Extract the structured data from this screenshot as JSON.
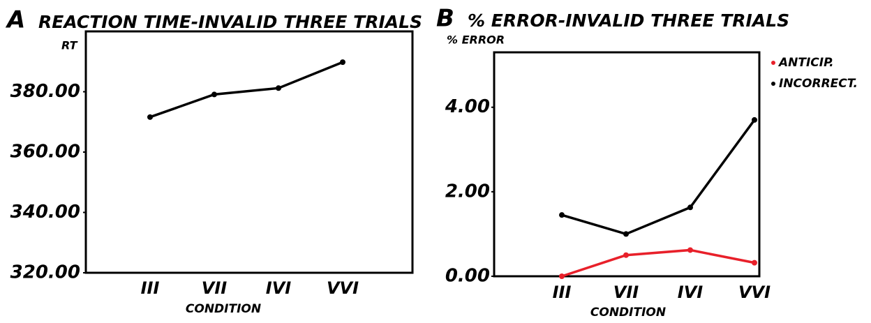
{
  "chart_data": [
    {
      "type": "line",
      "panel": "A",
      "title": "REACTION TIME-INVALID THREE TRIALS",
      "y_label": "RT",
      "x_label": "CONDITION",
      "categories": [
        "III",
        "VII",
        "IVI",
        "VVI"
      ],
      "values": [
        371.6,
        379.1,
        381.2,
        389.8
      ],
      "color": "#000000",
      "ylim": [
        320,
        400
      ],
      "yticks": [
        {
          "value": 320,
          "label": "320.00"
        },
        {
          "value": 340,
          "label": "340.00"
        },
        {
          "value": 360,
          "label": "360.00"
        },
        {
          "value": 380,
          "label": "380.00"
        }
      ]
    },
    {
      "type": "line",
      "panel": "B",
      "title": "% ERROR-INVALID THREE TRIALS",
      "y_label": "% ERROR",
      "x_label": "CONDITION",
      "categories": [
        "III",
        "VII",
        "IVI",
        "VVI"
      ],
      "series": [
        {
          "name": "ANTICIP.",
          "color": "#e8202a",
          "values": [
            0.0,
            0.5,
            0.62,
            0.32
          ]
        },
        {
          "name": "INCORRECT.",
          "color": "#000000",
          "values": [
            1.45,
            1.0,
            1.63,
            3.7
          ]
        }
      ],
      "ylim": [
        0,
        5.3
      ],
      "yticks": [
        {
          "value": 0,
          "label": "0.00"
        },
        {
          "value": 2,
          "label": "2.00"
        },
        {
          "value": 4,
          "label": "4.00"
        }
      ],
      "legend": "top-right"
    }
  ]
}
